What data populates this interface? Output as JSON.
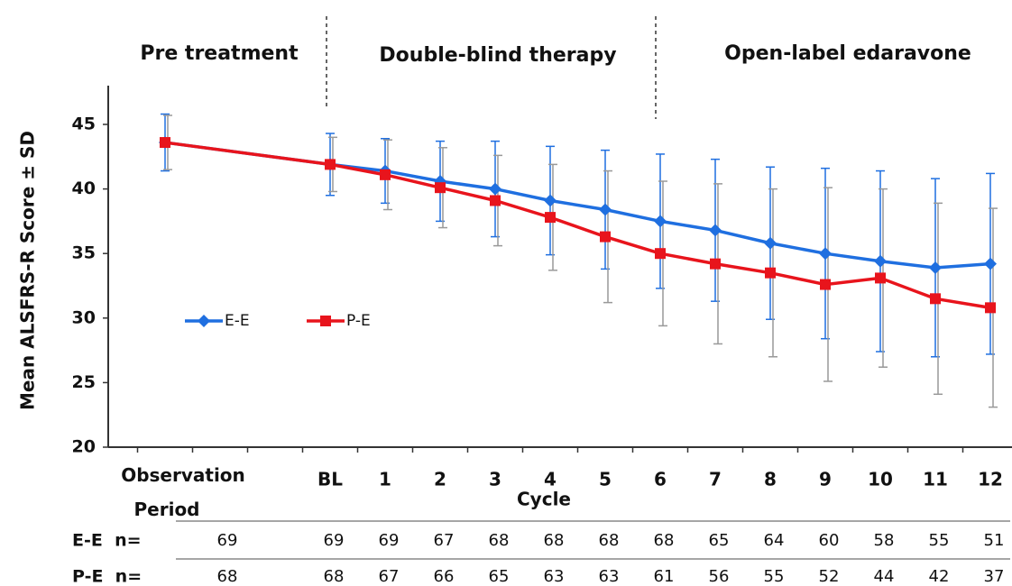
{
  "chart_data": {
    "type": "line",
    "annotations": [
      "Pre treatment",
      "Double-blind therapy",
      "Open-label edaravone"
    ],
    "ylabel": "Mean ALSFRS-R Score ± SD",
    "xlabel": "Cycle",
    "categories": [
      "Observation Period",
      null,
      null,
      "BL",
      "1",
      "2",
      "3",
      "4",
      "5",
      "6",
      "7",
      "8",
      "9",
      "10",
      "11",
      "12"
    ],
    "series": [
      {
        "name": "E-E",
        "color": "#1f6fe0",
        "marker": "diamond",
        "values": [
          43.6,
          null,
          null,
          41.9,
          41.4,
          40.6,
          40.0,
          39.1,
          38.4,
          37.5,
          36.8,
          35.8,
          35.0,
          34.4,
          33.9,
          34.2
        ],
        "errors": [
          2.2,
          null,
          null,
          2.4,
          2.5,
          3.1,
          3.7,
          4.2,
          4.6,
          5.2,
          5.5,
          5.9,
          6.6,
          7.0,
          6.9,
          7.0
        ]
      },
      {
        "name": "P-E",
        "color": "#e8141c",
        "marker": "square",
        "values": [
          43.6,
          null,
          null,
          41.9,
          41.1,
          40.1,
          39.1,
          37.8,
          36.3,
          35.0,
          34.2,
          33.5,
          32.6,
          33.1,
          31.5,
          30.8
        ],
        "errors": [
          2.1,
          null,
          null,
          2.1,
          2.7,
          3.1,
          3.5,
          4.1,
          5.1,
          5.6,
          6.2,
          6.5,
          7.5,
          6.9,
          7.4,
          7.7
        ]
      }
    ],
    "ylim": [
      20,
      45
    ],
    "yticks": [
      20,
      25,
      30,
      35,
      40,
      45
    ],
    "n_table": {
      "rows": [
        {
          "label": "E-E  n=",
          "values": [
            69,
            null,
            null,
            69,
            69,
            67,
            68,
            68,
            68,
            68,
            65,
            64,
            60,
            58,
            55,
            51
          ]
        },
        {
          "label": "P-E  n=",
          "values": [
            68,
            null,
            null,
            68,
            67,
            66,
            65,
            63,
            63,
            61,
            56,
            55,
            52,
            44,
            42,
            37
          ]
        }
      ]
    }
  }
}
